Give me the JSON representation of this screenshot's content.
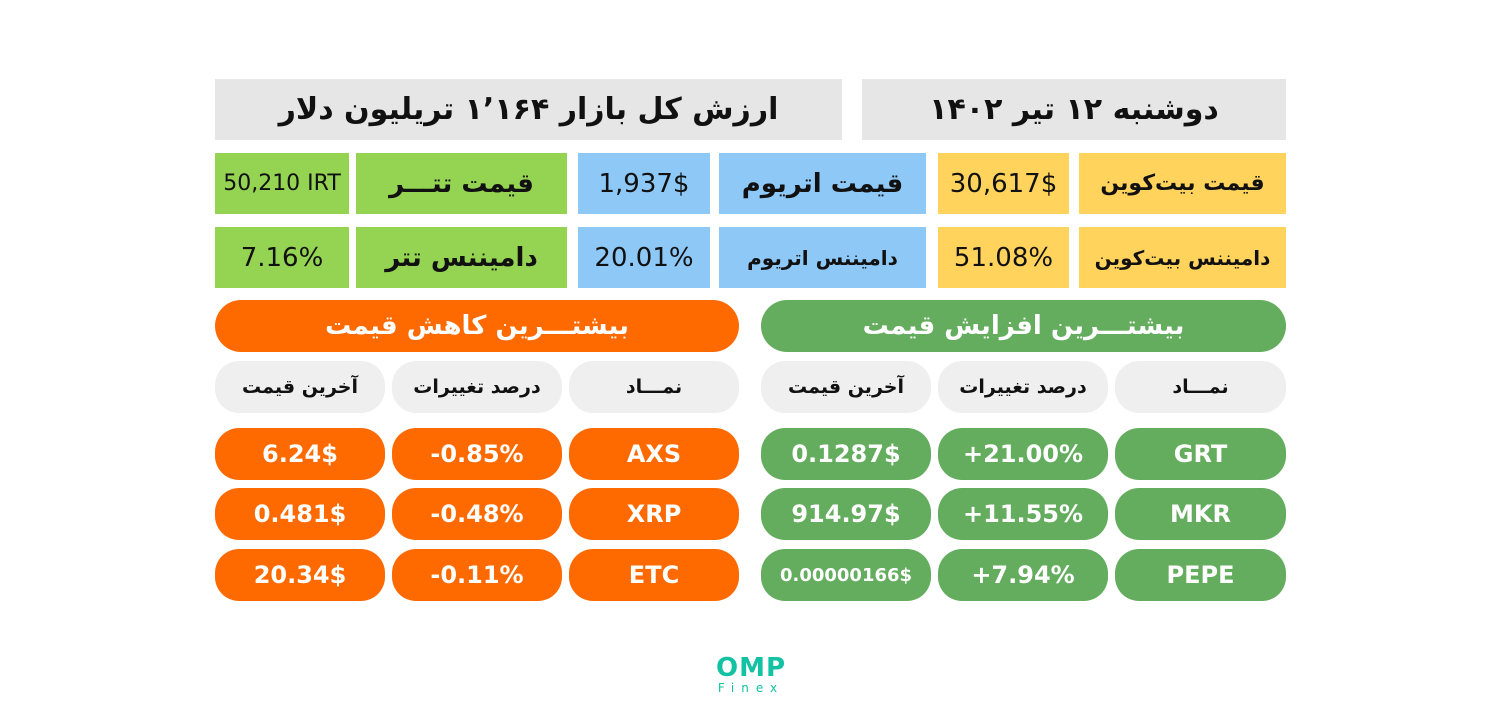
{
  "header": {
    "market_cap": "ارزش کل بازار ۱٬۱۶۴ تریلیون دلار",
    "date": "دوشنبه ۱۲ تیر ۱۴۰۲"
  },
  "prices": {
    "tether_label": "قیمت تتـــر",
    "tether_value": "50,210 IRT",
    "eth_label": "قیمت اتریوم",
    "eth_value": "1,937$",
    "btc_label": "قیمت بیت‌کوین",
    "btc_value": "30,617$"
  },
  "dominance": {
    "tether_label": "دامیننس تتر",
    "tether_value": "7.16%",
    "eth_label": "دامیننس اتریوم",
    "eth_value": "20.01%",
    "btc_label": "دامیننس بیت‌کوین",
    "btc_value": "51.08%"
  },
  "losers": {
    "title": "بیشتـــرین کاهش قیمت",
    "headers": {
      "symbol": "نمـــاد",
      "change": "درصد تغییرات",
      "price": "آخرین قیمت"
    },
    "rows": [
      {
        "symbol": "AXS",
        "change": "-0.85%",
        "price": "6.24$"
      },
      {
        "symbol": "XRP",
        "change": "-0.48%",
        "price": "0.481$"
      },
      {
        "symbol": "ETC",
        "change": "-0.11%",
        "price": "20.34$"
      }
    ]
  },
  "gainers": {
    "title": "بیشتـــرین افزایش قیمت",
    "headers": {
      "symbol": "نمـــاد",
      "change": "درصد تغییرات",
      "price": "آخرین قیمت"
    },
    "rows": [
      {
        "symbol": "GRT",
        "change": "+21.00%",
        "price": "0.1287$"
      },
      {
        "symbol": "MKR",
        "change": "+11.55%",
        "price": "914.97$"
      },
      {
        "symbol": "PEPE",
        "change": "+7.94%",
        "price": "0.00000166$"
      }
    ]
  },
  "logo": {
    "name": "OMP",
    "sub": "Finex"
  },
  "colors": {
    "header_gray": "#e6e6e6",
    "btc_yellow": "#ffd35c",
    "eth_blue": "#8ec8f7",
    "tether_green": "#95d353",
    "loss_orange": "#ff6a00",
    "gain_green": "#64ad5e",
    "logo_teal": "#12c2a2"
  }
}
